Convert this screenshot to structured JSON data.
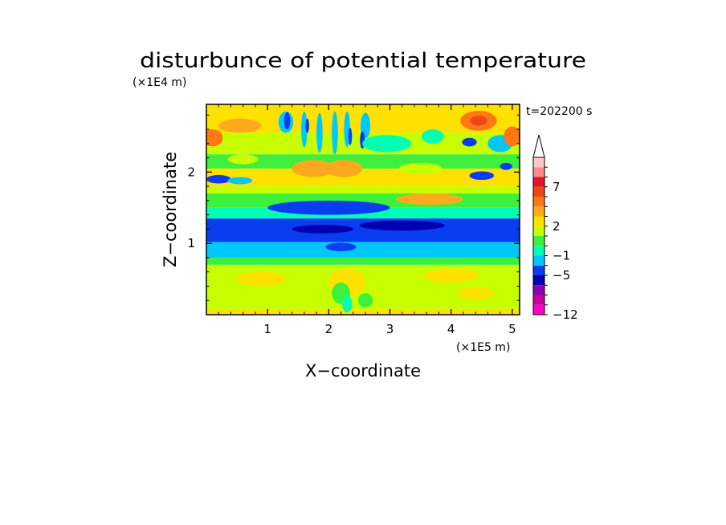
{
  "chart_data": {
    "type": "heatmap",
    "title": "disturbunce of potential temperature",
    "time_label": "t=202200 s",
    "xlabel": "X−coordinate",
    "ylabel": "Z−coordinate",
    "x_multiplier": "(×1E5 m)",
    "y_multiplier": "(×1E4 m)",
    "xlim": [
      0,
      5.12
    ],
    "ylim": [
      0,
      2.95
    ],
    "x_ticks": [
      {
        "value": 1,
        "label": "1"
      },
      {
        "value": 2,
        "label": "2"
      },
      {
        "value": 3,
        "label": "3"
      },
      {
        "value": 4,
        "label": "4"
      },
      {
        "value": 5,
        "label": "5"
      }
    ],
    "y_ticks": [
      {
        "value": 1,
        "label": "1"
      },
      {
        "value": 2,
        "label": "2"
      }
    ],
    "colorbar": {
      "levels": [
        {
          "from": -12,
          "to": -10,
          "color": "#ff00c8"
        },
        {
          "from": -10,
          "to": -8,
          "color": "#c8009b"
        },
        {
          "from": -8,
          "to": -6,
          "color": "#8c00b4"
        },
        {
          "from": -6,
          "to": -5,
          "color": "#0000b4"
        },
        {
          "from": -5,
          "to": -3,
          "color": "#0a3cf0"
        },
        {
          "from": -3,
          "to": -1,
          "color": "#00c8ff"
        },
        {
          "from": -1,
          "to": 0,
          "color": "#00ffb4"
        },
        {
          "from": 0,
          "to": 1,
          "color": "#3cf03c"
        },
        {
          "from": 1,
          "to": 2,
          "color": "#c8ff00"
        },
        {
          "from": 2,
          "to": 3,
          "color": "#ffe100"
        },
        {
          "from": 3,
          "to": 5,
          "color": "#ffaa1e"
        },
        {
          "from": 5,
          "to": 6,
          "color": "#ff7814"
        },
        {
          "from": 6,
          "to": 7,
          "color": "#f04614"
        },
        {
          "from": 7,
          "to": 8,
          "color": "#e61428"
        },
        {
          "from": 8,
          "to": 9,
          "color": "#ff8c8c"
        },
        {
          "from": 9,
          "to": 10,
          "color": "#ffc8c8"
        }
      ],
      "tick_labels": [
        {
          "value": 7,
          "label": "7"
        },
        {
          "value": 2,
          "label": "2"
        },
        {
          "value": -1,
          "label": "−1"
        },
        {
          "value": -5,
          "label": "−5"
        },
        {
          "value": -12,
          "label": "−12"
        }
      ],
      "extend": "max"
    },
    "field_bands": [
      {
        "z": [
          0.0,
          0.08
        ],
        "color": "#ffe100"
      },
      {
        "z": [
          0.08,
          0.7
        ],
        "color": "#c8ff00"
      },
      {
        "z": [
          0.7,
          0.8
        ],
        "color": "#3cf03c"
      },
      {
        "z": [
          0.8,
          1.02
        ],
        "color": "#00c8ff"
      },
      {
        "z": [
          1.02,
          1.35
        ],
        "color": "#0a3cf0"
      },
      {
        "z": [
          1.35,
          1.5
        ],
        "color": "#00ffb4"
      },
      {
        "z": [
          1.5,
          1.7
        ],
        "color": "#3cf03c"
      },
      {
        "z": [
          1.7,
          1.8
        ],
        "color": "#c8ff00"
      },
      {
        "z": [
          1.8,
          2.05
        ],
        "color": "#ffe100"
      },
      {
        "z": [
          2.05,
          2.25
        ],
        "color": "#3cf03c"
      },
      {
        "z": [
          2.25,
          2.55
        ],
        "color": "#c8ff00"
      },
      {
        "z": [
          2.55,
          2.95
        ],
        "color": "#ffe100"
      }
    ],
    "field_patches": [
      {
        "x": 0.1,
        "z": 2.48,
        "rx": 0.17,
        "rz": 0.12,
        "color": "#ff7814"
      },
      {
        "x": 0.55,
        "z": 2.65,
        "rx": 0.35,
        "rz": 0.1,
        "color": "#ffaa1e"
      },
      {
        "x": 0.6,
        "z": 2.18,
        "rx": 0.25,
        "rz": 0.07,
        "color": "#c8ff00"
      },
      {
        "x": 1.5,
        "z": 2.45,
        "rx": 0.45,
        "rz": 0.12,
        "color": "#c8ff00"
      },
      {
        "x": 1.75,
        "z": 2.05,
        "rx": 0.35,
        "rz": 0.12,
        "color": "#ffaa1e"
      },
      {
        "x": 2.25,
        "z": 2.05,
        "rx": 0.3,
        "rz": 0.12,
        "color": "#ffaa1e"
      },
      {
        "x": 1.3,
        "z": 2.7,
        "rx": 0.12,
        "rz": 0.15,
        "color": "#00c8ff"
      },
      {
        "x": 1.32,
        "z": 2.72,
        "rx": 0.05,
        "rz": 0.12,
        "color": "#0a3cf0"
      },
      {
        "x": 1.6,
        "z": 2.6,
        "rx": 0.05,
        "rz": 0.25,
        "color": "#00c8ff"
      },
      {
        "x": 1.85,
        "z": 2.55,
        "rx": 0.05,
        "rz": 0.28,
        "color": "#00c8ff"
      },
      {
        "x": 2.1,
        "z": 2.55,
        "rx": 0.05,
        "rz": 0.3,
        "color": "#00c8ff"
      },
      {
        "x": 2.3,
        "z": 2.6,
        "rx": 0.05,
        "rz": 0.25,
        "color": "#00c8ff"
      },
      {
        "x": 2.6,
        "z": 2.65,
        "rx": 0.08,
        "rz": 0.18,
        "color": "#00c8ff"
      },
      {
        "x": 2.35,
        "z": 2.5,
        "rx": 0.03,
        "rz": 0.12,
        "color": "#0a3cf0"
      },
      {
        "x": 2.55,
        "z": 2.45,
        "rx": 0.04,
        "rz": 0.12,
        "color": "#0a3cf0"
      },
      {
        "x": 1.65,
        "z": 2.65,
        "rx": 0.03,
        "rz": 0.1,
        "color": "#0a3cf0"
      },
      {
        "x": 2.95,
        "z": 2.4,
        "rx": 0.4,
        "rz": 0.12,
        "color": "#00ffb4"
      },
      {
        "x": 3.7,
        "z": 2.5,
        "rx": 0.18,
        "rz": 0.1,
        "color": "#00ffb4"
      },
      {
        "x": 4.45,
        "z": 2.72,
        "rx": 0.3,
        "rz": 0.14,
        "color": "#ff7814"
      },
      {
        "x": 4.45,
        "z": 2.72,
        "rx": 0.14,
        "rz": 0.07,
        "color": "#f04614"
      },
      {
        "x": 4.3,
        "z": 2.42,
        "rx": 0.12,
        "rz": 0.06,
        "color": "#0a3cf0"
      },
      {
        "x": 4.8,
        "z": 2.4,
        "rx": 0.2,
        "rz": 0.12,
        "color": "#00c8ff"
      },
      {
        "x": 5.0,
        "z": 2.5,
        "rx": 0.14,
        "rz": 0.14,
        "color": "#ff7814"
      },
      {
        "x": 4.5,
        "z": 1.95,
        "rx": 0.2,
        "rz": 0.06,
        "color": "#0a3cf0"
      },
      {
        "x": 4.9,
        "z": 2.08,
        "rx": 0.1,
        "rz": 0.05,
        "color": "#0a3cf0"
      },
      {
        "x": 3.65,
        "z": 1.62,
        "rx": 0.55,
        "rz": 0.08,
        "color": "#ffaa1e"
      },
      {
        "x": 0.2,
        "z": 1.9,
        "rx": 0.2,
        "rz": 0.06,
        "color": "#0a3cf0"
      },
      {
        "x": 0.55,
        "z": 1.88,
        "rx": 0.2,
        "rz": 0.05,
        "color": "#00c8ff"
      },
      {
        "x": 2.0,
        "z": 1.5,
        "rx": 1.0,
        "rz": 0.1,
        "color": "#0a3cf0"
      },
      {
        "x": 3.2,
        "z": 1.25,
        "rx": 0.7,
        "rz": 0.07,
        "color": "#0000b4"
      },
      {
        "x": 1.9,
        "z": 1.2,
        "rx": 0.5,
        "rz": 0.06,
        "color": "#0000b4"
      },
      {
        "x": 4.5,
        "z": 1.1,
        "rx": 0.5,
        "rz": 0.06,
        "color": "#0a3cf0"
      },
      {
        "x": 2.2,
        "z": 0.95,
        "rx": 0.25,
        "rz": 0.06,
        "color": "#0a3cf0"
      },
      {
        "x": 2.3,
        "z": 0.45,
        "rx": 0.3,
        "rz": 0.2,
        "color": "#ffe100"
      },
      {
        "x": 0.9,
        "z": 0.5,
        "rx": 0.4,
        "rz": 0.1,
        "color": "#ffe100"
      },
      {
        "x": 4.0,
        "z": 0.55,
        "rx": 0.45,
        "rz": 0.1,
        "color": "#ffe100"
      },
      {
        "x": 2.2,
        "z": 0.3,
        "rx": 0.15,
        "rz": 0.15,
        "color": "#3cf03c"
      },
      {
        "x": 2.3,
        "z": 0.15,
        "rx": 0.08,
        "rz": 0.12,
        "color": "#00ffb4"
      },
      {
        "x": 2.6,
        "z": 0.2,
        "rx": 0.12,
        "rz": 0.1,
        "color": "#3cf03c"
      },
      {
        "x": 4.4,
        "z": 0.3,
        "rx": 0.3,
        "rz": 0.08,
        "color": "#ffe100"
      },
      {
        "x": 3.5,
        "z": 2.05,
        "rx": 0.35,
        "rz": 0.08,
        "color": "#c8ff00"
      }
    ]
  }
}
